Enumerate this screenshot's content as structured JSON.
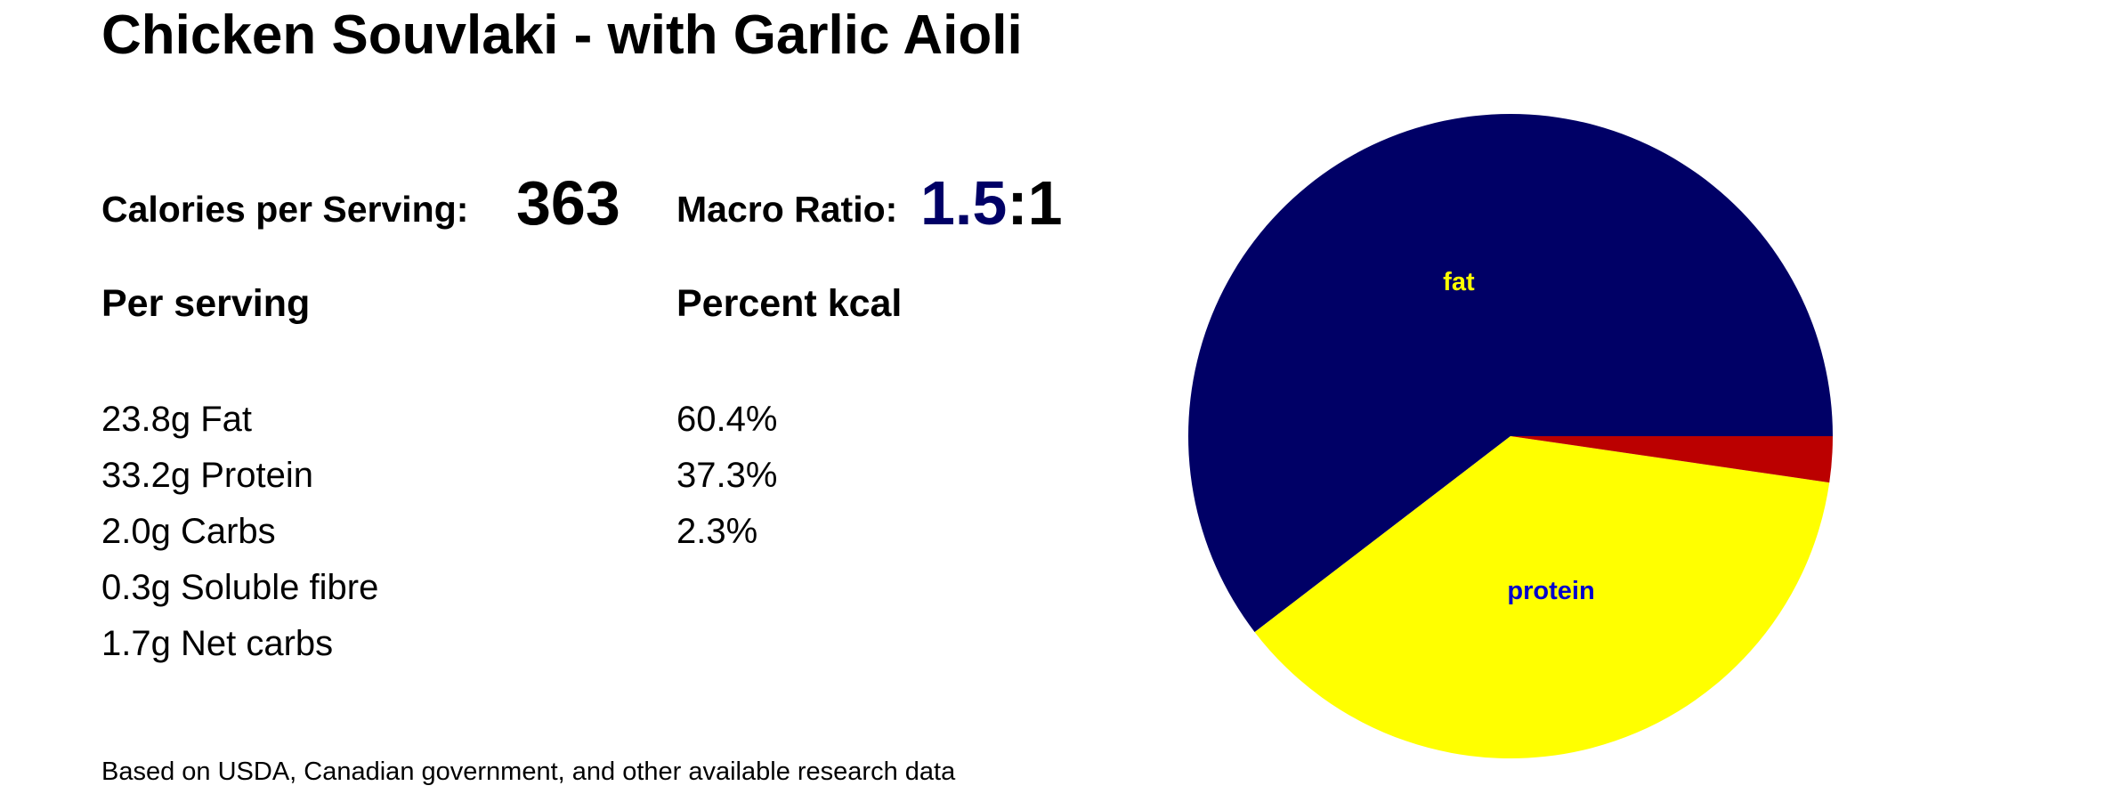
{
  "title": "Chicken Souvlaki - with Garlic Aioli",
  "calories": {
    "label": "Calories per Serving:",
    "value": "363"
  },
  "macro_ratio": {
    "label": "Macro Ratio:",
    "value": "1.5",
    "suffix": ":1",
    "value_color": "#000066"
  },
  "per_serving": {
    "heading": "Per serving",
    "items": [
      "23.8g Fat",
      "33.2g Protein",
      "2.0g Carbs",
      "0.3g Soluble fibre",
      "1.7g Net carbs"
    ]
  },
  "percent_kcal": {
    "heading": "Percent kcal",
    "items": [
      "60.4%",
      "37.3%",
      "2.3%"
    ]
  },
  "source_note": "Based on USDA, Canadian government, and other available research data",
  "chart_data": {
    "type": "pie",
    "slices": [
      {
        "label": "fat",
        "value": 60.4,
        "color": "#000066",
        "label_color": "#ffff00"
      },
      {
        "label": "protein",
        "value": 37.3,
        "color": "#ffff00",
        "label_color": "#0000cc"
      },
      {
        "label": "",
        "value": 2.3,
        "color": "#bb0000",
        "label_color": "#ffffff"
      }
    ],
    "start_angle_deg": 0,
    "direction": "clockwise-visual-from-east-fat-first-counterclockwise"
  }
}
